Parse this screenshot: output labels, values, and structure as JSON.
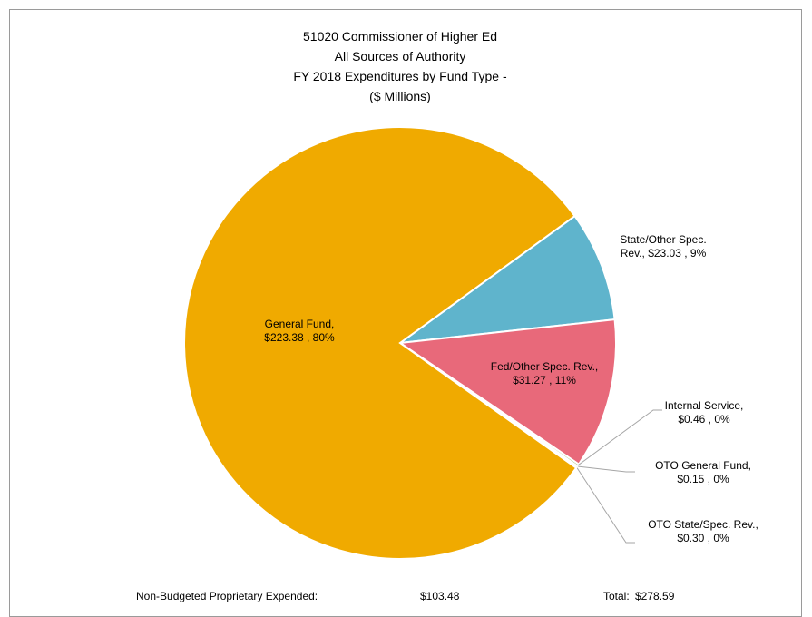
{
  "chart_data": {
    "type": "pie",
    "title": [
      "51020 Commissioner of Higher Ed",
      "All Sources of Authority",
      "FY 2018 Expenditures by Fund Type -",
      "($ Millions)"
    ],
    "categories": [
      "State/Other Spec. Rev.,",
      "Fed/Other Spec. Rev.,",
      "Internal Service,",
      "OTO General Fund,",
      "OTO State/Spec. Rev.,",
      "General Fund,"
    ],
    "values": [
      23.03,
      31.27,
      0.46,
      0.15,
      0.3,
      223.38
    ],
    "value_labels": [
      "$23.03 , 9%",
      "$31.27 , 11%",
      "$0.46 , 0%",
      "$0.15 , 0%",
      "$0.30 , 0%",
      "$223.38 , 80%"
    ],
    "colors": [
      "#5fb4cc",
      "#e8697a",
      "#8db04a",
      "#7a5ea8",
      "#3c8fa8",
      "#f0aa00"
    ],
    "footnotes": [
      {
        "label": "Non-Budgeted Proprietary Expended:",
        "value": "$103.48"
      },
      {
        "label": "Total:",
        "value": "$278.59"
      }
    ]
  }
}
